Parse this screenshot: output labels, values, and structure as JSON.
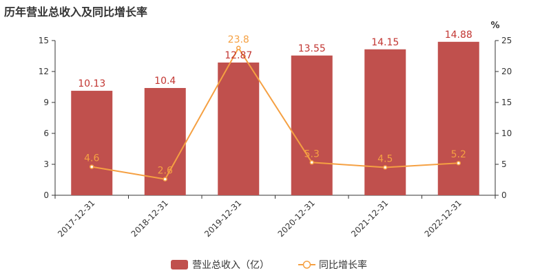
{
  "chart_data": {
    "type": "bar",
    "title": "历年营业总收入及同比增长率",
    "categories": [
      "2017-12-31",
      "2018-12-31",
      "2019-12-31",
      "2020-12-31",
      "2021-12-31",
      "2022-12-31"
    ],
    "series": [
      {
        "name": "营业总收入（亿）",
        "type": "bar",
        "axis": "left",
        "values": [
          10.13,
          10.4,
          12.87,
          13.55,
          14.15,
          14.88
        ],
        "labels": [
          "10.13",
          "10.4",
          "12.87",
          "13.55",
          "14.15",
          "14.88"
        ],
        "color": "#c0504d"
      },
      {
        "name": "同比增长率",
        "type": "line",
        "axis": "right",
        "values": [
          4.6,
          2.6,
          23.8,
          5.3,
          4.5,
          5.2
        ],
        "labels": [
          "4.6",
          "2.6",
          "23.8",
          "5.3",
          "4.5",
          "5.2"
        ],
        "color": "#f5a042"
      }
    ],
    "y_left": {
      "min": 0,
      "max": 15,
      "ticks": [
        "0",
        "3",
        "6",
        "9",
        "12",
        "15"
      ]
    },
    "y_right": {
      "min": 0,
      "max": 25,
      "ticks": [
        "0",
        "5",
        "10",
        "15",
        "20",
        "25"
      ],
      "unit": "%"
    },
    "legend_position": "bottom-center",
    "grid": false
  }
}
